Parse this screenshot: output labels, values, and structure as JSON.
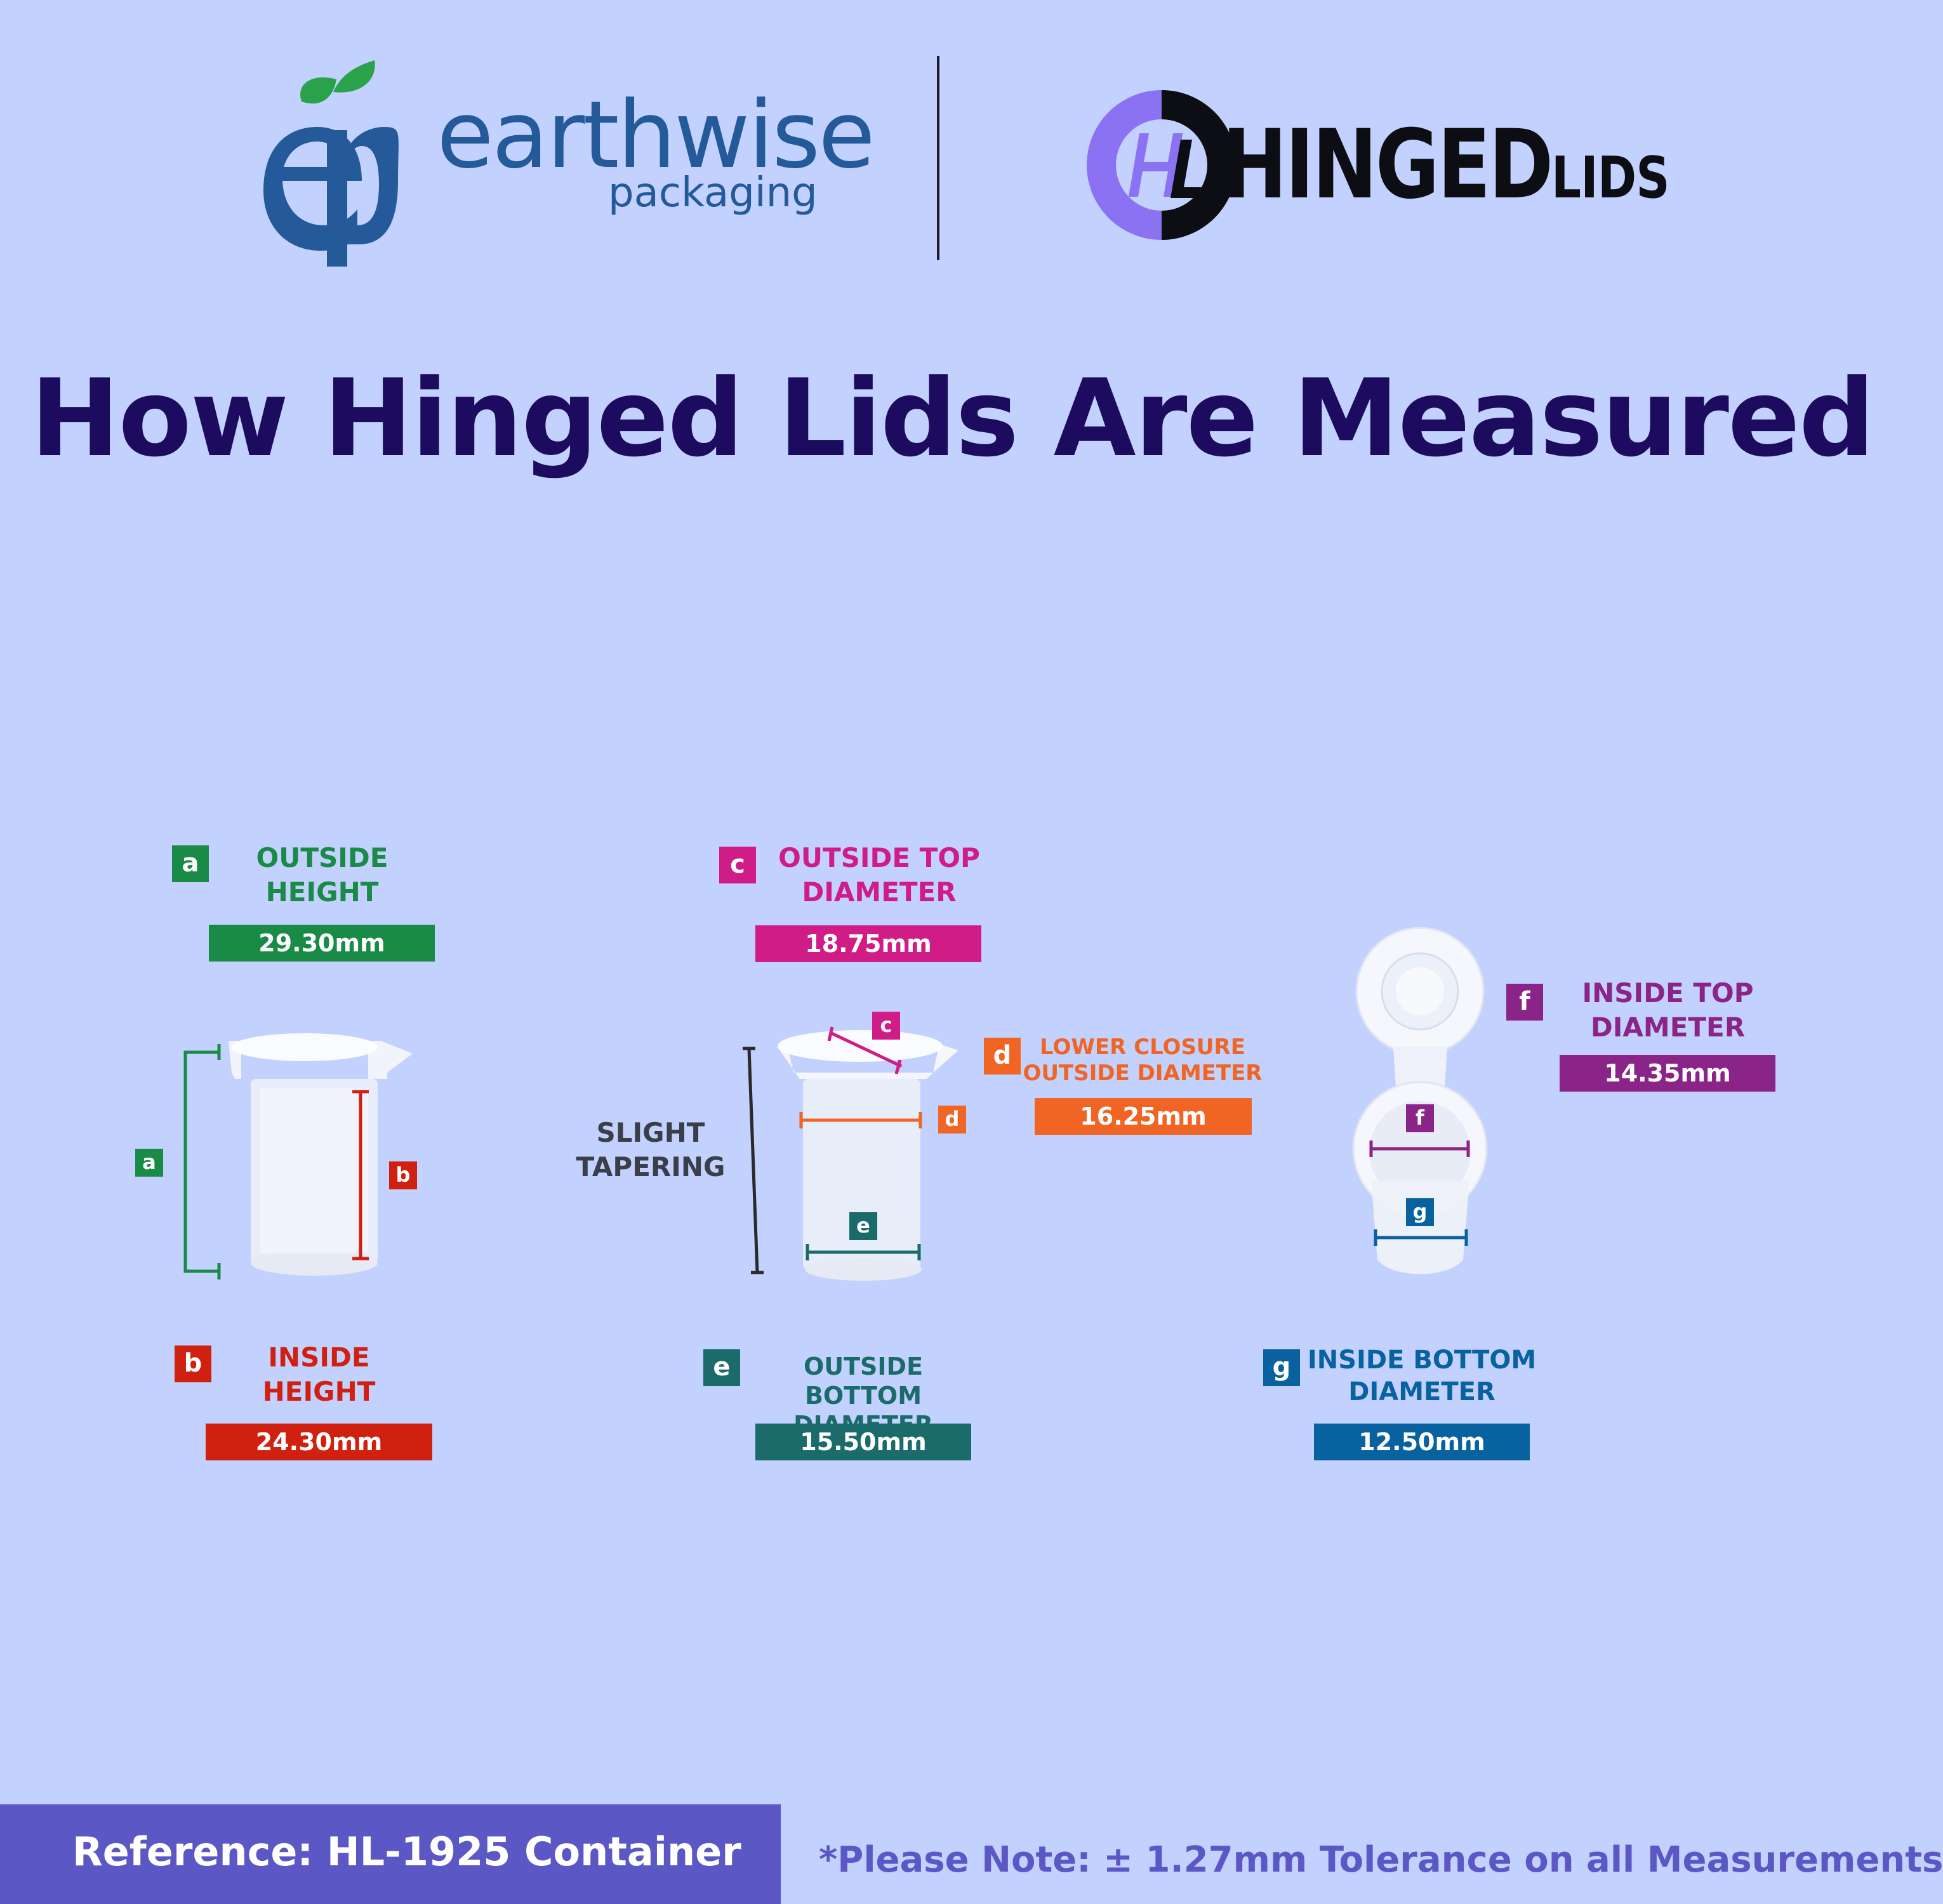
{
  "header": {
    "earthwise": {
      "monogram": "ep",
      "word": "earthwise",
      "sub": "packaging"
    },
    "hinged": {
      "monogram": "HL",
      "word_big": "HINGED",
      "word_small": "LIDS"
    }
  },
  "title": "How Hinged Lids Are Measured",
  "measurements": {
    "a": {
      "letter": "a",
      "line1": "OUTSIDE",
      "line2": "HEIGHT",
      "value": "29.30mm",
      "color": "#1a8a47"
    },
    "b": {
      "letter": "b",
      "line1": "INSIDE",
      "line2": "HEIGHT",
      "value": "24.30mm",
      "color": "#d0200f"
    },
    "c": {
      "letter": "c",
      "line1": "OUTSIDE TOP",
      "line2": "DIAMETER",
      "value": "18.75mm",
      "color": "#cf1c86"
    },
    "d": {
      "letter": "d",
      "line1": "LOWER CLOSURE",
      "line2": "OUTSIDE DIAMETER",
      "value": "16.25mm",
      "color": "#f06424"
    },
    "e": {
      "letter": "e",
      "line1": "OUTSIDE BOTTOM",
      "line2": "DIAMETER",
      "value": "15.50mm",
      "color": "#1a6b69"
    },
    "f": {
      "letter": "f",
      "line1": "INSIDE TOP",
      "line2": "DIAMETER",
      "value": "14.35mm",
      "color": "#8b2488"
    },
    "g": {
      "letter": "g",
      "line1": "INSIDE BOTTOM",
      "line2": "DIAMETER",
      "value": "12.50mm",
      "color": "#08629f"
    }
  },
  "tapering": {
    "line1": "SLIGHT",
    "line2": "TAPERING"
  },
  "footer": {
    "reference": "Reference: HL-1925 Container",
    "note": "*Please Note: ± 1.27mm Tolerance on all Measurements"
  }
}
